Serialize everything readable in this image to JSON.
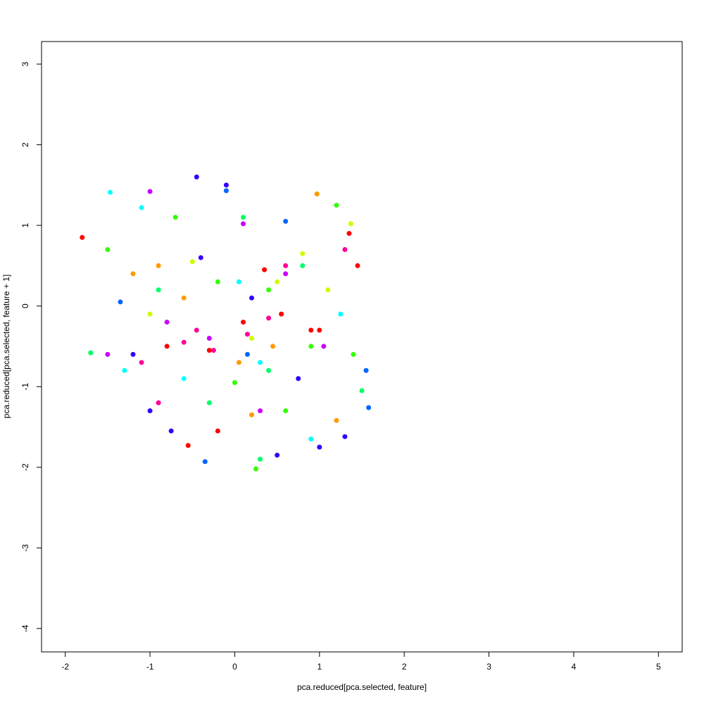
{
  "chart_data": {
    "type": "scatter",
    "x_label": "pca.reduced[pca.selected, feature]",
    "y_label": "pca.reduced[pca.selected, feature + 1]",
    "xlim": [
      -2.28,
      5.28
    ],
    "ylim": [
      -4.29,
      3.28
    ],
    "xticks": [
      -2,
      -1,
      0,
      1,
      2,
      3,
      4,
      5
    ],
    "yticks": [
      -4,
      -3,
      -2,
      -1,
      0,
      1,
      2,
      3
    ],
    "series": [
      {
        "color": "#FF0000",
        "x": [
          -1.8,
          -0.8,
          -0.3,
          0.1,
          0.35,
          0.9,
          1.35,
          1.45,
          -0.55,
          0.55,
          -0.2,
          1.0
        ],
        "values": [
          0.85,
          -0.5,
          -0.55,
          -0.2,
          0.45,
          -0.3,
          0.9,
          0.5,
          -1.73,
          -0.1,
          -1.55,
          -0.3
        ]
      },
      {
        "color": "#FF9900",
        "x": [
          0.97,
          -1.2,
          0.2,
          -0.6,
          0.45,
          1.2,
          -0.9,
          0.05
        ],
        "values": [
          1.39,
          0.4,
          -1.35,
          0.1,
          -0.5,
          -1.42,
          0.5,
          -0.7
        ]
      },
      {
        "color": "#CCFF00",
        "x": [
          1.37,
          -0.5,
          0.2,
          0.8,
          -1.0,
          0.5,
          1.1
        ],
        "values": [
          1.02,
          0.55,
          -0.4,
          0.65,
          -0.1,
          0.3,
          0.2
        ]
      },
      {
        "color": "#33FF00",
        "x": [
          0.25,
          1.2,
          -0.2,
          0.4,
          0.9,
          -1.5,
          0.6,
          0.0,
          1.4,
          -0.7
        ],
        "values": [
          -2.02,
          1.25,
          0.3,
          0.2,
          -0.5,
          0.7,
          -1.3,
          -0.95,
          -0.6,
          1.1
        ]
      },
      {
        "color": "#00FF66",
        "x": [
          0.3,
          -0.9,
          0.8,
          -0.3,
          1.5,
          0.4,
          -1.7,
          0.1
        ],
        "values": [
          -1.9,
          0.2,
          0.5,
          -1.2,
          -1.05,
          -0.8,
          -0.58,
          1.1
        ]
      },
      {
        "color": "#00FFFF",
        "x": [
          -1.47,
          -0.6,
          0.3,
          1.25,
          -1.3,
          0.9,
          -1.1,
          0.05
        ],
        "values": [
          1.41,
          -0.9,
          -0.7,
          -0.1,
          -0.8,
          -1.65,
          1.22,
          0.3
        ]
      },
      {
        "color": "#0066FF",
        "x": [
          1.58,
          -1.35,
          -0.35,
          0.6,
          1.55,
          -0.1,
          0.15
        ],
        "values": [
          -1.26,
          0.05,
          -1.93,
          1.05,
          -0.8,
          1.43,
          -0.6
        ]
      },
      {
        "color": "#3300FF",
        "x": [
          -0.45,
          -0.1,
          -1.0,
          0.5,
          1.0,
          -0.75,
          1.3,
          0.2,
          -1.2,
          0.75,
          -0.4
        ],
        "values": [
          1.6,
          1.5,
          -1.3,
          -1.85,
          -1.75,
          -1.55,
          -1.62,
          0.1,
          -0.6,
          -0.9,
          0.6
        ]
      },
      {
        "color": "#CC00FF",
        "x": [
          -1.0,
          -0.3,
          0.3,
          1.05,
          -1.5,
          0.6,
          -0.8,
          0.1
        ],
        "values": [
          1.42,
          -0.4,
          -1.3,
          -0.5,
          -0.6,
          0.4,
          -0.2,
          1.02
        ]
      },
      {
        "color": "#FF0099",
        "x": [
          -0.6,
          -0.25,
          0.15,
          0.6,
          -0.9,
          1.3,
          -1.1,
          0.4,
          -0.45
        ],
        "values": [
          -0.45,
          -0.55,
          -0.35,
          0.5,
          -1.2,
          0.7,
          -0.7,
          -0.15,
          -0.3
        ]
      }
    ]
  }
}
